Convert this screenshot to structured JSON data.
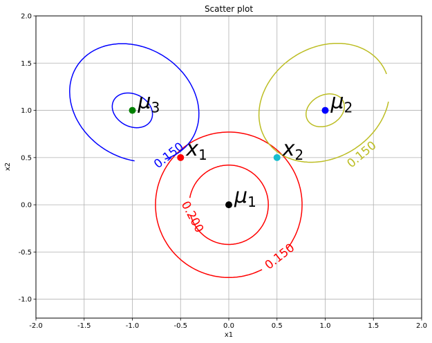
{
  "chart_data": {
    "type": "scatter",
    "title": "Scatter plot",
    "xlabel": "x1",
    "ylabel": "x2",
    "xlim": [
      -2.0,
      2.0
    ],
    "ylim": [
      -1.2,
      2.0
    ],
    "xticks": [
      "-2.0",
      "-1.5",
      "-1.0",
      "-0.5",
      "0.0",
      "0.5",
      "1.0",
      "1.5",
      "2.0"
    ],
    "yticks": [
      "-1.0",
      "-0.5",
      "0.0",
      "0.5",
      "1.0",
      "1.5",
      "2.0"
    ],
    "grid": true,
    "points": [
      {
        "label": "μ",
        "sub": "1",
        "x": 0.0,
        "y": 0.0,
        "color": "#000000"
      },
      {
        "label": "μ",
        "sub": "2",
        "x": 1.0,
        "y": 1.0,
        "color": "#0000ff"
      },
      {
        "label": "μ",
        "sub": "3",
        "x": -1.0,
        "y": 1.0,
        "color": "#008000"
      },
      {
        "label": "x",
        "sub": "1",
        "x": -0.5,
        "y": 0.5,
        "color": "#ff0000"
      },
      {
        "label": "x",
        "sub": "2",
        "x": 0.5,
        "y": 0.5,
        "color": "#17becf"
      }
    ],
    "contours": [
      {
        "color": "#ff0000",
        "center": [
          0.0,
          0.0
        ],
        "rx": 0.41,
        "ry": 0.42,
        "rot": 0,
        "gap": [
          170,
          195
        ],
        "level": "0.200",
        "label_at": [
          -0.38,
          -0.13
        ],
        "label_rot": 62
      },
      {
        "color": "#ff0000",
        "center": [
          0.0,
          0.0
        ],
        "rx": 0.76,
        "ry": 0.77,
        "rot": 0,
        "gap": [
          297,
          323
        ],
        "level": "0.150",
        "label_at": [
          0.53,
          -0.55
        ],
        "label_rot": -38
      },
      {
        "color": "#0000ff",
        "center": [
          -1.0,
          1.0
        ],
        "rx": 0.22,
        "ry": 0.17,
        "rot": -30,
        "gap": null,
        "level": null
      },
      {
        "color": "#0000ff",
        "center": [
          -0.98,
          1.08
        ],
        "rx": 0.71,
        "ry": 0.58,
        "rot": -35,
        "gap": [
          300,
          328
        ],
        "level": "0.150",
        "label_at": [
          -0.62,
          0.52
        ],
        "label_rot": -38
      },
      {
        "color": "#bcbd22",
        "center": [
          1.0,
          1.0
        ],
        "rx": 0.21,
        "ry": 0.16,
        "rot": 30,
        "gap": null,
        "level": null
      },
      {
        "color": "#bcbd22",
        "center": [
          0.99,
          1.08
        ],
        "rx": 0.72,
        "ry": 0.58,
        "rot": 35,
        "gap": [
          320,
          348
        ],
        "level": "0.150",
        "label_at": [
          1.38,
          0.53
        ],
        "label_rot": -40
      }
    ]
  }
}
